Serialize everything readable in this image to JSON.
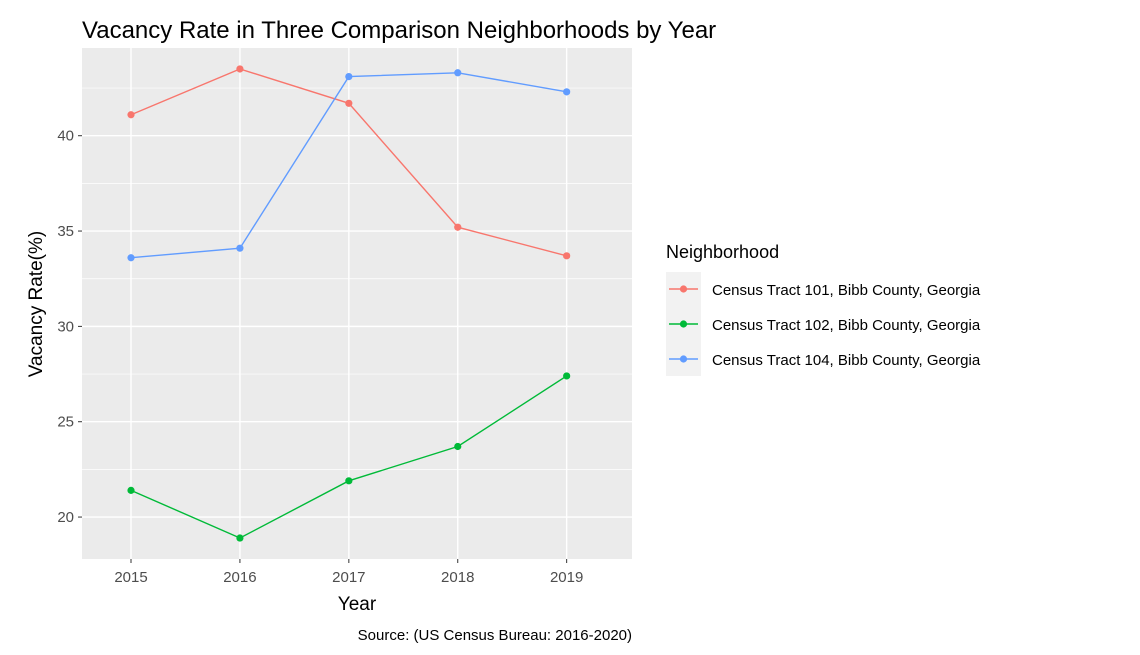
{
  "chart_data": {
    "type": "line",
    "title": "Vacancy Rate in Three Comparison Neighborhoods by Year",
    "xlabel": "Year",
    "ylabel": "Vacancy Rate(%)",
    "caption": "Source: (US Census Bureau: 2016-2020)",
    "x": [
      2015,
      2016,
      2017,
      2018,
      2019
    ],
    "xlim": [
      2014.55,
      2019.6
    ],
    "ylim": [
      17.8,
      44.6
    ],
    "y_ticks": [
      20,
      25,
      30,
      35,
      40
    ],
    "grid": true,
    "legend": {
      "title": "Neighborhood",
      "position": "right"
    },
    "series": [
      {
        "name": "Census Tract 101, Bibb County, Georgia",
        "color": "#F8766D",
        "values": [
          41.1,
          43.5,
          41.7,
          35.2,
          33.7
        ]
      },
      {
        "name": "Census Tract 102, Bibb County, Georgia",
        "color": "#00BA38",
        "values": [
          21.4,
          18.9,
          21.9,
          23.7,
          27.4
        ]
      },
      {
        "name": "Census Tract 104, Bibb County, Georgia",
        "color": "#619CFF",
        "values": [
          33.6,
          34.1,
          43.1,
          43.3,
          42.3
        ]
      }
    ],
    "panel_background": "#EBEBEB"
  }
}
